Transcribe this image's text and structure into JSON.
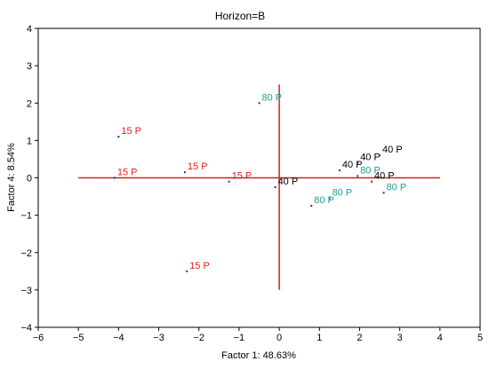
{
  "chart_data": {
    "type": "scatter",
    "title": "Horizon=B",
    "xlabel": "Factor 1: 48.63%",
    "ylabel": "Factor 4:  8.54%",
    "xlim": [
      -6,
      5
    ],
    "ylim": [
      -4,
      4
    ],
    "xticks": [
      "−6",
      "−5",
      "−4",
      "−3",
      "−2",
      "−1",
      "0",
      "1",
      "2",
      "3",
      "4",
      "5"
    ],
    "yticks": [
      "−4",
      "−3",
      "−2",
      "−1",
      "0",
      "1",
      "2",
      "3",
      "4"
    ],
    "grid": false,
    "reference_lines": {
      "horizontal": {
        "y": 0,
        "x_from": -5,
        "x_to": 4
      },
      "vertical": {
        "x": 0,
        "y_from": -3,
        "y_to": 2.5
      }
    },
    "colors": {
      "15 P": "#e02020",
      "40 P": "#000000",
      "80 P": "#20a090",
      "reference_line": "#d02020",
      "point": "#2030a0"
    },
    "points": [
      {
        "label": "15 P",
        "x": -4.0,
        "y": 1.1
      },
      {
        "label": "15 P",
        "x": -4.1,
        "y": 0.0
      },
      {
        "label": "15 P",
        "x": -2.35,
        "y": 0.15
      },
      {
        "label": "15 P",
        "x": -1.25,
        "y": -0.1
      },
      {
        "label": "15 P",
        "x": -2.3,
        "y": -2.5
      },
      {
        "label": "80 P",
        "x": -0.5,
        "y": 2.0
      },
      {
        "label": "40 P",
        "x": -0.1,
        "y": -0.25
      },
      {
        "label": "40 P",
        "x": 1.5,
        "y": 0.2
      },
      {
        "label": "40 P",
        "x": 1.95,
        "y": 0.4
      },
      {
        "label": "40 P",
        "x": 2.5,
        "y": 0.6
      },
      {
        "label": "80 P",
        "x": 1.95,
        "y": 0.05
      },
      {
        "label": "40 P",
        "x": 2.3,
        "y": -0.1
      },
      {
        "label": "80 P",
        "x": 2.6,
        "y": -0.4
      },
      {
        "label": "80 P",
        "x": 1.25,
        "y": -0.55
      },
      {
        "label": "80 P",
        "x": 0.8,
        "y": -0.75
      }
    ]
  }
}
